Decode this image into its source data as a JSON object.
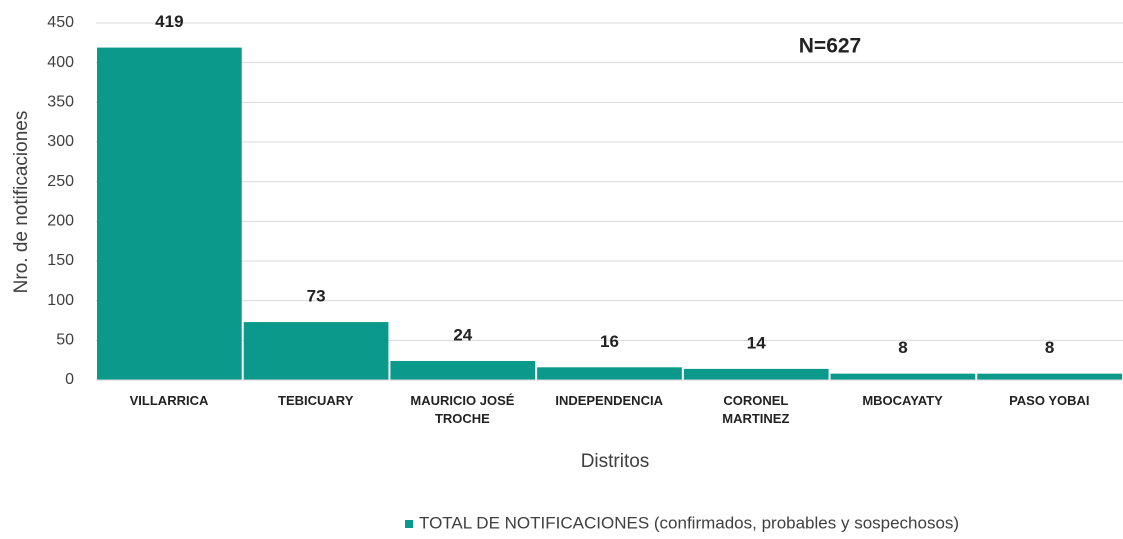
{
  "chart_data": {
    "type": "bar",
    "categories": [
      "VILLARRICA",
      "TEBICUARY",
      "MAURICIO JOSÉ TROCHE",
      "INDEPENDENCIA",
      "CORONEL MARTINEZ",
      "MBOCAYATY",
      "PASO YOBAI"
    ],
    "series": [
      {
        "name": "TOTAL DE NOTIFICACIONES (confirmados, probables y sospechosos)",
        "color": "#0a998a",
        "values": [
          419,
          73,
          24,
          16,
          14,
          8,
          8
        ]
      }
    ],
    "ylim": [
      0,
      450
    ],
    "yticks": [
      0,
      50,
      100,
      150,
      200,
      250,
      300,
      350,
      400,
      450
    ],
    "ylabel": "Nro. de notificaciones",
    "xlabel": "Distritos",
    "annotation": "N=627",
    "grid": true,
    "legend": "bottom"
  }
}
